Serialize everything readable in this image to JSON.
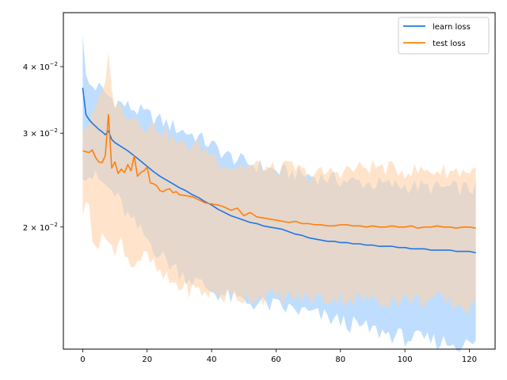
{
  "chart_data": {
    "type": "line",
    "yscale": "log",
    "xlim": [
      -6,
      128
    ],
    "ylim": [
      0.0118,
      0.0505
    ],
    "x_ticks": [
      0,
      20,
      40,
      60,
      80,
      100,
      120
    ],
    "x_tick_labels": [
      "0",
      "20",
      "40",
      "60",
      "80",
      "100",
      "120"
    ],
    "y_ticks": [
      {
        "value": 0.04,
        "mantissa": "4",
        "base": "10",
        "exp": "−2"
      },
      {
        "value": 0.03,
        "mantissa": "3",
        "base": "10",
        "exp": "−2"
      },
      {
        "value": 0.02,
        "mantissa": "2",
        "base": "10",
        "exp": "−2"
      }
    ],
    "legend_position": "top-right",
    "grid": false,
    "series": [
      {
        "name": "learn loss",
        "color": "#1f77e8",
        "band_color": "#a9d3ff",
        "anchors_x": [
          0,
          1,
          2,
          3,
          4,
          5,
          6,
          7,
          8,
          9,
          10,
          12,
          14,
          16,
          18,
          20,
          22,
          24,
          26,
          28,
          30,
          32,
          34,
          36,
          38,
          40,
          42,
          44,
          46,
          48,
          50,
          52,
          54,
          56,
          58,
          60,
          62,
          64,
          66,
          68,
          70,
          72,
          74,
          76,
          78,
          80,
          82,
          84,
          86,
          88,
          90,
          92,
          94,
          96,
          98,
          100,
          102,
          104,
          106,
          108,
          110,
          112,
          114,
          116,
          118,
          120,
          122
        ],
        "anchors_y": [
          0.0365,
          0.0325,
          0.0318,
          0.0313,
          0.0309,
          0.0305,
          0.0302,
          0.0298,
          0.0303,
          0.0292,
          0.0288,
          0.0283,
          0.0278,
          0.0272,
          0.0266,
          0.026,
          0.0254,
          0.0249,
          0.0245,
          0.0241,
          0.0237,
          0.0234,
          0.023,
          0.0227,
          0.0223,
          0.022,
          0.0216,
          0.0213,
          0.021,
          0.0208,
          0.0206,
          0.0204,
          0.0203,
          0.0201,
          0.02,
          0.0199,
          0.0198,
          0.0196,
          0.0194,
          0.0193,
          0.0191,
          0.019,
          0.0189,
          0.0188,
          0.0188,
          0.0187,
          0.0187,
          0.0186,
          0.0186,
          0.0185,
          0.0185,
          0.0184,
          0.0184,
          0.0184,
          0.0183,
          0.0183,
          0.0182,
          0.0182,
          0.0182,
          0.0181,
          0.0181,
          0.0181,
          0.0181,
          0.018,
          0.018,
          0.018,
          0.0179
        ],
        "band_upper_anchors_x": [
          0,
          1,
          2,
          5,
          10,
          15,
          20,
          25,
          30,
          35,
          40,
          45,
          50,
          60,
          70,
          80,
          90,
          100,
          110,
          122
        ],
        "band_upper_anchors_y": [
          0.047,
          0.038,
          0.037,
          0.0365,
          0.0345,
          0.0335,
          0.0325,
          0.0315,
          0.0305,
          0.0297,
          0.0285,
          0.0272,
          0.0265,
          0.0255,
          0.025,
          0.0245,
          0.0241,
          0.0239,
          0.0237,
          0.0236
        ],
        "band_lower_anchors_x": [
          0,
          5,
          10,
          15,
          20,
          25,
          30,
          35,
          40,
          45,
          50,
          60,
          70,
          80,
          90,
          100,
          110,
          122
        ],
        "band_lower_anchors_y": [
          0.0255,
          0.0245,
          0.023,
          0.0205,
          0.019,
          0.0175,
          0.0165,
          0.0158,
          0.0152,
          0.0148,
          0.0145,
          0.0142,
          0.0138,
          0.0133,
          0.0128,
          0.0124,
          0.0122,
          0.012
        ]
      },
      {
        "name": "test loss",
        "color": "#ff7f0e",
        "band_color": "#ffd2a8",
        "anchors_x": [
          0,
          1,
          2,
          3,
          4,
          5,
          6,
          7,
          8,
          9,
          10,
          11,
          12,
          13,
          14,
          15,
          16,
          17,
          18,
          19,
          20,
          21,
          22,
          23,
          24,
          25,
          26,
          27,
          28,
          29,
          30,
          32,
          34,
          36,
          38,
          40,
          42,
          44,
          46,
          48,
          50,
          52,
          54,
          56,
          58,
          60,
          62,
          64,
          66,
          68,
          70,
          72,
          74,
          76,
          78,
          80,
          82,
          84,
          86,
          88,
          90,
          92,
          94,
          96,
          98,
          100,
          102,
          104,
          106,
          108,
          110,
          112,
          114,
          116,
          118,
          120,
          122
        ],
        "anchors_y": [
          0.0278,
          0.0277,
          0.0276,
          0.0279,
          0.027,
          0.0265,
          0.0264,
          0.0272,
          0.0325,
          0.0258,
          0.0265,
          0.0252,
          0.0257,
          0.0253,
          0.0262,
          0.0255,
          0.0272,
          0.0249,
          0.0253,
          0.0255,
          0.0259,
          0.0242,
          0.0241,
          0.0239,
          0.0234,
          0.0233,
          0.0235,
          0.0236,
          0.0232,
          0.0233,
          0.023,
          0.0229,
          0.0228,
          0.0225,
          0.0222,
          0.0221,
          0.022,
          0.0218,
          0.0215,
          0.0217,
          0.021,
          0.0213,
          0.0209,
          0.0208,
          0.0207,
          0.0206,
          0.0205,
          0.0204,
          0.0205,
          0.0203,
          0.0203,
          0.0202,
          0.0202,
          0.0201,
          0.0201,
          0.0202,
          0.0202,
          0.0201,
          0.0201,
          0.02,
          0.0201,
          0.02,
          0.02,
          0.0201,
          0.02,
          0.02,
          0.0201,
          0.0199,
          0.02,
          0.02,
          0.0201,
          0.02,
          0.02,
          0.0199,
          0.02,
          0.02,
          0.0199
        ],
        "band_upper_anchors_x": [
          0,
          3,
          6,
          8,
          10,
          15,
          20,
          25,
          30,
          35,
          40,
          45,
          50,
          55,
          60,
          65,
          70,
          80,
          90,
          100,
          110,
          122
        ],
        "band_upper_anchors_y": [
          0.0305,
          0.032,
          0.0355,
          0.0415,
          0.034,
          0.0325,
          0.031,
          0.0305,
          0.0285,
          0.0285,
          0.0275,
          0.026,
          0.026,
          0.026,
          0.0255,
          0.026,
          0.025,
          0.0255,
          0.026,
          0.0255,
          0.0255,
          0.0255
        ],
        "band_lower_anchors_x": [
          0,
          2,
          3,
          5,
          8,
          10,
          12,
          15,
          18,
          20,
          25,
          30,
          35,
          40,
          45,
          50,
          60,
          70,
          80,
          90,
          100,
          110,
          122
        ],
        "band_lower_anchors_y": [
          0.0215,
          0.022,
          0.0195,
          0.0185,
          0.0195,
          0.0175,
          0.019,
          0.017,
          0.0175,
          0.0175,
          0.016,
          0.0155,
          0.0152,
          0.015,
          0.0148,
          0.0148,
          0.0148,
          0.0147,
          0.0147,
          0.0146,
          0.0146,
          0.0146,
          0.014
        ]
      }
    ]
  }
}
